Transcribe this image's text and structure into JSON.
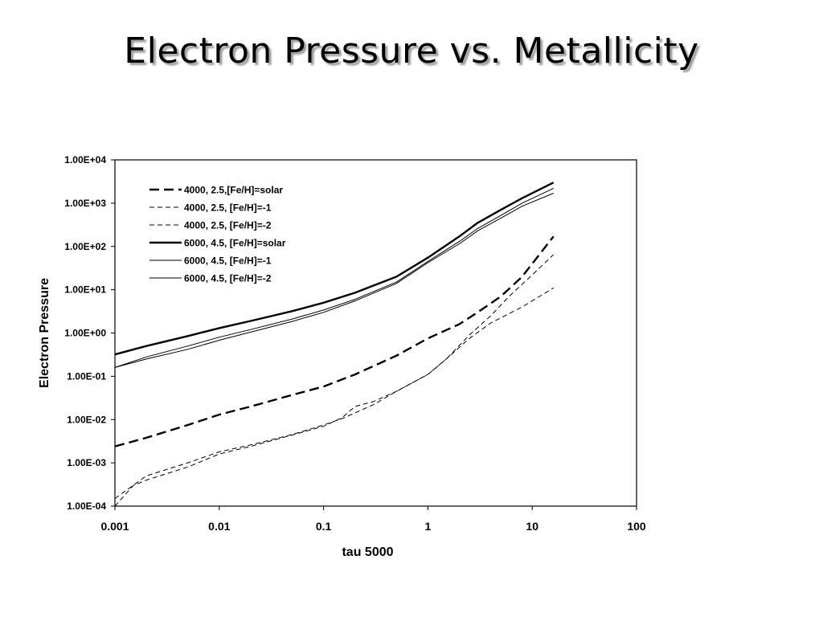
{
  "slide": {
    "title": "Electron Pressure vs. Metallicity"
  },
  "chart_data": {
    "type": "line",
    "title": "",
    "xlabel": "tau 5000",
    "ylabel": "Electron Pressure",
    "x_scale": "log",
    "y_scale": "log",
    "xlim": [
      0.001,
      100
    ],
    "ylim": [
      0.0001,
      10000
    ],
    "x_ticks": [
      0.001,
      0.01,
      0.1,
      1,
      10,
      100
    ],
    "x_tick_labels": [
      "0.001",
      "0.01",
      "0.1",
      "1",
      "10",
      "100"
    ],
    "y_ticks": [
      0.0001,
      0.001,
      0.01,
      0.1,
      1,
      10,
      100,
      1000,
      10000
    ],
    "y_tick_labels": [
      "1.00E-04",
      "1.00E-03",
      "1.00E-02",
      "1.00E-01",
      "1.00E+00",
      "1.00E+01",
      "1.00E+02",
      "1.00E+03",
      "1.00E+04"
    ],
    "grid": false,
    "legend_position": "top-left",
    "series": [
      {
        "name": "4000, 2.5,[Fe/H]=solar",
        "color": "#000000",
        "style": "long-dash",
        "weight": "thick",
        "points": [
          [
            0.001,
            0.0024
          ],
          [
            0.002,
            0.0038
          ],
          [
            0.005,
            0.0075
          ],
          [
            0.01,
            0.013
          ],
          [
            0.02,
            0.02
          ],
          [
            0.05,
            0.037
          ],
          [
            0.1,
            0.058
          ],
          [
            0.2,
            0.11
          ],
          [
            0.5,
            0.3
          ],
          [
            1,
            0.75
          ],
          [
            2,
            1.6
          ],
          [
            3,
            3
          ],
          [
            5,
            7
          ],
          [
            8,
            20
          ],
          [
            12,
            70
          ],
          [
            16,
            170
          ]
        ]
      },
      {
        "name": "4000, 2.5, [Fe/H]=-1",
        "color": "#000000",
        "style": "dash",
        "weight": "thin",
        "points": [
          [
            0.001,
            0.0001
          ],
          [
            0.0015,
            0.0003
          ],
          [
            0.002,
            0.0004
          ],
          [
            0.005,
            0.0008
          ],
          [
            0.01,
            0.0016
          ],
          [
            0.02,
            0.0024
          ],
          [
            0.05,
            0.0044
          ],
          [
            0.1,
            0.007
          ],
          [
            0.15,
            0.011
          ],
          [
            0.2,
            0.02
          ],
          [
            0.3,
            0.026
          ],
          [
            0.5,
            0.045
          ],
          [
            1,
            0.11
          ],
          [
            1.5,
            0.25
          ],
          [
            2.5,
            0.9
          ],
          [
            4,
            2.5
          ],
          [
            6,
            7
          ],
          [
            10,
            22
          ],
          [
            16,
            65
          ]
        ]
      },
      {
        "name": "4000, 2.5, [Fe/H]=-2",
        "color": "#000000",
        "style": "dash",
        "weight": "thin",
        "points": [
          [
            0.001,
            0.00015
          ],
          [
            0.002,
            0.0005
          ],
          [
            0.005,
            0.001
          ],
          [
            0.01,
            0.0018
          ],
          [
            0.02,
            0.0026
          ],
          [
            0.05,
            0.0045
          ],
          [
            0.1,
            0.0075
          ],
          [
            0.15,
            0.0105
          ],
          [
            0.3,
            0.022
          ],
          [
            0.5,
            0.045
          ],
          [
            1,
            0.11
          ],
          [
            1.5,
            0.25
          ],
          [
            2.5,
            0.75
          ],
          [
            4,
            1.7
          ],
          [
            8,
            4
          ],
          [
            16,
            11
          ]
        ]
      },
      {
        "name": "6000, 4.5, [Fe/H]=solar",
        "color": "#000000",
        "style": "solid",
        "weight": "thick",
        "points": [
          [
            0.001,
            0.32
          ],
          [
            0.002,
            0.5
          ],
          [
            0.005,
            0.85
          ],
          [
            0.01,
            1.3
          ],
          [
            0.02,
            1.9
          ],
          [
            0.05,
            3.2
          ],
          [
            0.1,
            5
          ],
          [
            0.2,
            8.5
          ],
          [
            0.5,
            20
          ],
          [
            1,
            55
          ],
          [
            2,
            170
          ],
          [
            3,
            350
          ],
          [
            5,
            700
          ],
          [
            8,
            1300
          ],
          [
            16,
            3000
          ]
        ]
      },
      {
        "name": "6000, 4.5, [Fe/H]=-1",
        "color": "#000000",
        "style": "solid",
        "weight": "thin",
        "points": [
          [
            0.001,
            0.16
          ],
          [
            0.002,
            0.28
          ],
          [
            0.005,
            0.5
          ],
          [
            0.01,
            0.8
          ],
          [
            0.02,
            1.2
          ],
          [
            0.05,
            2.1
          ],
          [
            0.1,
            3.4
          ],
          [
            0.2,
            6
          ],
          [
            0.5,
            15
          ],
          [
            1,
            45
          ],
          [
            2,
            130
          ],
          [
            3,
            260
          ],
          [
            5,
            520
          ],
          [
            8,
            1000
          ],
          [
            16,
            2200
          ]
        ]
      },
      {
        "name": "6000, 4.5, [Fe/H]=-2",
        "color": "#000000",
        "style": "solid",
        "weight": "thin",
        "points": [
          [
            0.001,
            0.16
          ],
          [
            0.002,
            0.25
          ],
          [
            0.005,
            0.42
          ],
          [
            0.01,
            0.68
          ],
          [
            0.02,
            1.05
          ],
          [
            0.05,
            1.85
          ],
          [
            0.1,
            3
          ],
          [
            0.2,
            5.5
          ],
          [
            0.5,
            14
          ],
          [
            1,
            42
          ],
          [
            2,
            115
          ],
          [
            3,
            230
          ],
          [
            5,
            450
          ],
          [
            8,
            850
          ],
          [
            16,
            1700
          ]
        ]
      }
    ]
  }
}
